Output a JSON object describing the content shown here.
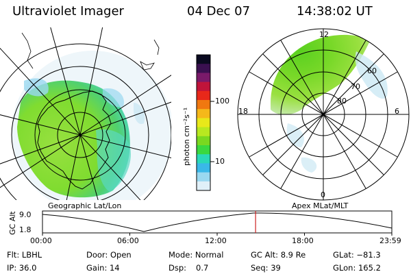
{
  "header": {
    "instrument": "Ultraviolet Imager",
    "date": "04 Dec 07",
    "time": "14:38:02 UT"
  },
  "colorbar": {
    "unit_label": "photon cm⁻²s⁻¹",
    "tick_labels": [
      "100",
      "10"
    ],
    "colors": [
      "#0a0a20",
      "#3a1050",
      "#7a1a6a",
      "#c0143a",
      "#e8281a",
      "#f07810",
      "#f5b81a",
      "#e8e81a",
      "#b8e820",
      "#7ad820",
      "#3ad840",
      "#2ad8b8",
      "#3ab8e8",
      "#9ad8f0",
      "#e0f0f8"
    ]
  },
  "left_map": {
    "label": "Geographic Lat/Lon"
  },
  "right_map": {
    "label": "Apex  MLat/MLT",
    "mlt_labels": {
      "top": "12",
      "left": "18",
      "right": "6",
      "bottom": "0"
    },
    "mlat_labels": [
      "60",
      "70",
      "80"
    ]
  },
  "altitude_plot": {
    "ylabel": "GC Alt",
    "y_ticks": [
      "9.0",
      "1.8"
    ],
    "x_ticks": [
      "00:00",
      "06:00",
      "12:00",
      "18:00",
      "23:59"
    ],
    "current_time_fraction": 0.61,
    "marker_color": "#cc2222"
  },
  "info": {
    "filter": "Flt: LBHL",
    "ip": "IP: 36.0",
    "door": "Door: Open",
    "gain": "Gain: 14",
    "mode": "Mode: Normal",
    "dsp_label": "Dsp:",
    "dsp_value": "0.7",
    "gc_alt": "GC Alt: 8.9 Re",
    "seq": "Seq: 39",
    "glat": "GLat: −81.3",
    "glon": "GLon: 165.2"
  }
}
